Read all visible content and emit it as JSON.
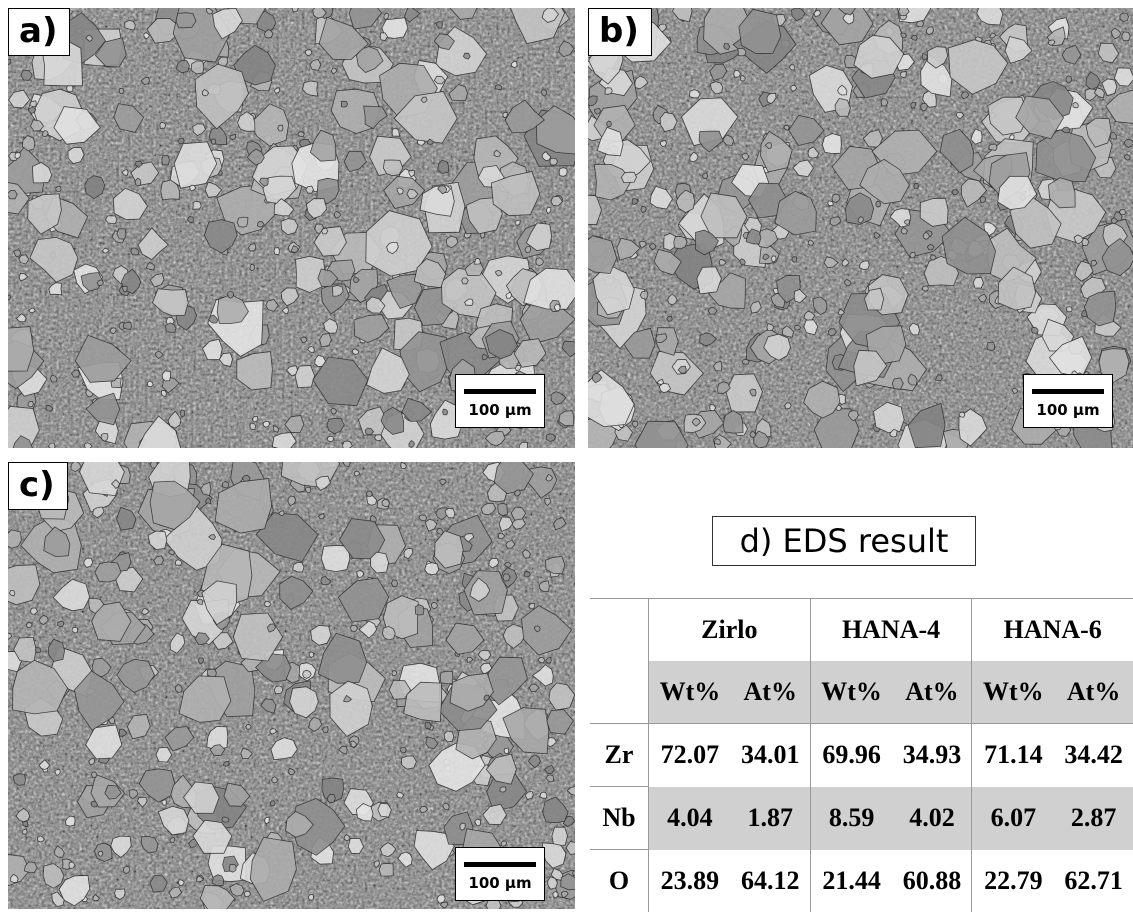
{
  "panels": [
    {
      "label": "a)",
      "scale_bar": "100 μm"
    },
    {
      "label": "b)",
      "scale_bar": "100 μm"
    },
    {
      "label": "c)",
      "scale_bar": "100 μm"
    }
  ],
  "table": {
    "title": "d) EDS result",
    "groups": [
      "Zirlo",
      "HANA-4",
      "HANA-6"
    ],
    "subheaders": [
      "Wt%",
      "At%",
      "Wt%",
      "At%",
      "Wt%",
      "At%"
    ],
    "rows": [
      {
        "element": "Zr",
        "values": [
          "72.07",
          "34.01",
          "69.96",
          "34.93",
          "71.14",
          "34.42"
        ]
      },
      {
        "element": "Nb",
        "values": [
          "4.04",
          "1.87",
          "8.59",
          "4.02",
          "6.07",
          "2.87"
        ]
      },
      {
        "element": "O",
        "values": [
          "23.89",
          "64.12",
          "21.44",
          "60.88",
          "22.79",
          "62.71"
        ]
      }
    ]
  }
}
